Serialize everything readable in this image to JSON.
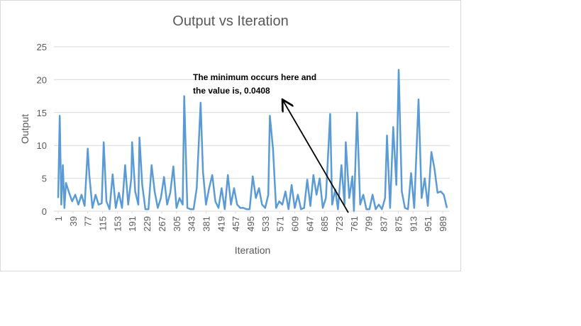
{
  "chart_data": {
    "type": "line",
    "title": "Output vs Iteration",
    "x_label": "Iteration",
    "y_label": "Output",
    "annotation": [
      "The minimum occurs here and",
      "the value is, 0.0408"
    ],
    "xlim": [
      1,
      1000
    ],
    "xticks": [
      1,
      39,
      77,
      115,
      153,
      191,
      229,
      267,
      305,
      343,
      381,
      419,
      457,
      495,
      533,
      571,
      609,
      647,
      685,
      723,
      761,
      799,
      837,
      875,
      913,
      951,
      989
    ],
    "ylim": [
      0,
      25
    ],
    "yticks": [
      0,
      5,
      10,
      15,
      20,
      25
    ],
    "grid": true,
    "series": [
      {
        "color": "#5b9bd5",
        "x": [
          1,
          5,
          9,
          13,
          17,
          21,
          29,
          37,
          45,
          53,
          61,
          69,
          77,
          81,
          89,
          97,
          105,
          113,
          118,
          125,
          133,
          141,
          149,
          157,
          165,
          173,
          181,
          189,
          191,
          199,
          207,
          210,
          217,
          225,
          233,
          241,
          249,
          257,
          265,
          273,
          281,
          289,
          297,
          305,
          313,
          321,
          325,
          333,
          341,
          349,
          357,
          367,
          373,
          381,
          389,
          397,
          405,
          413,
          421,
          429,
          437,
          445,
          453,
          461,
          469,
          477,
          485,
          493,
          501,
          509,
          517,
          525,
          533,
          541,
          545,
          553,
          561,
          569,
          577,
          585,
          593,
          601,
          609,
          617,
          625,
          633,
          641,
          649,
          657,
          665,
          673,
          681,
          689,
          700,
          705,
          713,
          720,
          729,
          737,
          740,
          749,
          757,
          761,
          769,
          777,
          785,
          793,
          801,
          809,
          817,
          825,
          833,
          841,
          846,
          854,
          862,
          870,
          876,
          884,
          892,
          900,
          908,
          916,
          927,
          935,
          943,
          951,
          960,
          968,
          976,
          984,
          992,
          1000
        ],
        "values": [
          2,
          14.5,
          1,
          7,
          0.5,
          4.3,
          2.8,
          1.5,
          2.5,
          1,
          2.5,
          0.8,
          9.5,
          5.5,
          0.5,
          2.5,
          1,
          1.2,
          10.5,
          1.5,
          0.3,
          5.6,
          0.5,
          2.8,
          0.5,
          7,
          1,
          5,
          10.5,
          3,
          1,
          11.2,
          4,
          0.3,
          0.3,
          7,
          3,
          0.5,
          2,
          5.2,
          1,
          2.8,
          6.8,
          0.5,
          2,
          1,
          17.5,
          0.5,
          0.3,
          0.3,
          3.5,
          16.5,
          6,
          1,
          3.5,
          5.5,
          1.5,
          0.5,
          3.5,
          0.3,
          5.5,
          1,
          3.5,
          1,
          0.5,
          0.5,
          0.3,
          0.3,
          5.3,
          2,
          3.5,
          1,
          0.5,
          2.5,
          14.5,
          9.5,
          0.5,
          1.5,
          1,
          3,
          0.3,
          4,
          0.5,
          2.5,
          0.3,
          0.5,
          4.8,
          0.8,
          5.5,
          2.5,
          5,
          0.5,
          2,
          14.8,
          1,
          3.3,
          0.3,
          7,
          1,
          10.5,
          2,
          5.3,
          0.0408,
          15,
          1,
          2.5,
          0.3,
          0.3,
          2.5,
          0.3,
          1,
          0.3,
          2,
          11.5,
          0.5,
          12.8,
          4,
          21.5,
          3,
          0.5,
          0.3,
          5.8,
          0.5,
          17,
          2,
          5,
          0.8,
          9,
          6.5,
          2.8,
          3,
          2.5,
          0.5
        ]
      }
    ]
  }
}
